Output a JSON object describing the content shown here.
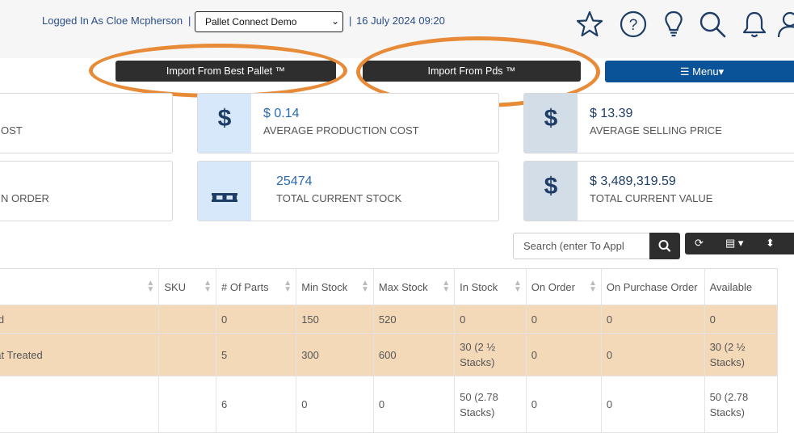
{
  "header": {
    "login_text": "Logged In As Cloe Mcpherson",
    "separator": "|",
    "company_select": "Pallet Connect Demo",
    "datetime": "16 July 2024 09:20",
    "icons": [
      "star-icon",
      "help-icon",
      "lightbulb-icon",
      "search-icon",
      "bell-icon",
      "user-icon"
    ]
  },
  "actions": {
    "import_best_pallet": "Import From Best Pallet ™",
    "import_pds": "Import From Pds ™",
    "menu": "☰ Menu▾"
  },
  "cards": [
    {
      "label": "OST",
      "value": ""
    },
    {
      "icon": "$",
      "value": "$ 0.14",
      "label": "AVERAGE PRODUCTION COST"
    },
    {
      "icon": "$",
      "value": "$ 13.39",
      "label": "AVERAGE SELLING PRICE"
    },
    {
      "label": "N ORDER",
      "value": ""
    },
    {
      "icon": "pallet-icon",
      "value": "25474",
      "label": "TOTAL CURRENT STOCK"
    },
    {
      "icon": "$",
      "value": "$ 3,489,319.59",
      "label": "TOTAL CURRENT VALUE"
    }
  ],
  "search": {
    "placeholder": "Search (enter To Appl"
  },
  "table": {
    "columns": [
      "",
      "SKU",
      "# Of Parts",
      "Min Stock",
      "Max Stock",
      "In Stock",
      "On Order",
      "On Purchase Order",
      "Available"
    ],
    "rows": [
      [
        "ted",
        "",
        "0",
        "150",
        "520",
        "0",
        "0",
        "0",
        "0"
      ],
      [
        "eat Treated",
        "",
        "5",
        "300",
        "600",
        "30 (2 ½ Stacks)",
        "0",
        "0",
        "30 (2 ½ Stacks)"
      ],
      [
        "",
        "",
        "6",
        "0",
        "0",
        "50 (2.78 Stacks)",
        "0",
        "0",
        "50 (2.78 Stacks)"
      ]
    ]
  },
  "colors": {
    "accent_blue": "#0a5399",
    "highlight_row": "#f3d9b8",
    "annotation_orange": "#e88b38",
    "dark_button": "#2e2e2e"
  }
}
